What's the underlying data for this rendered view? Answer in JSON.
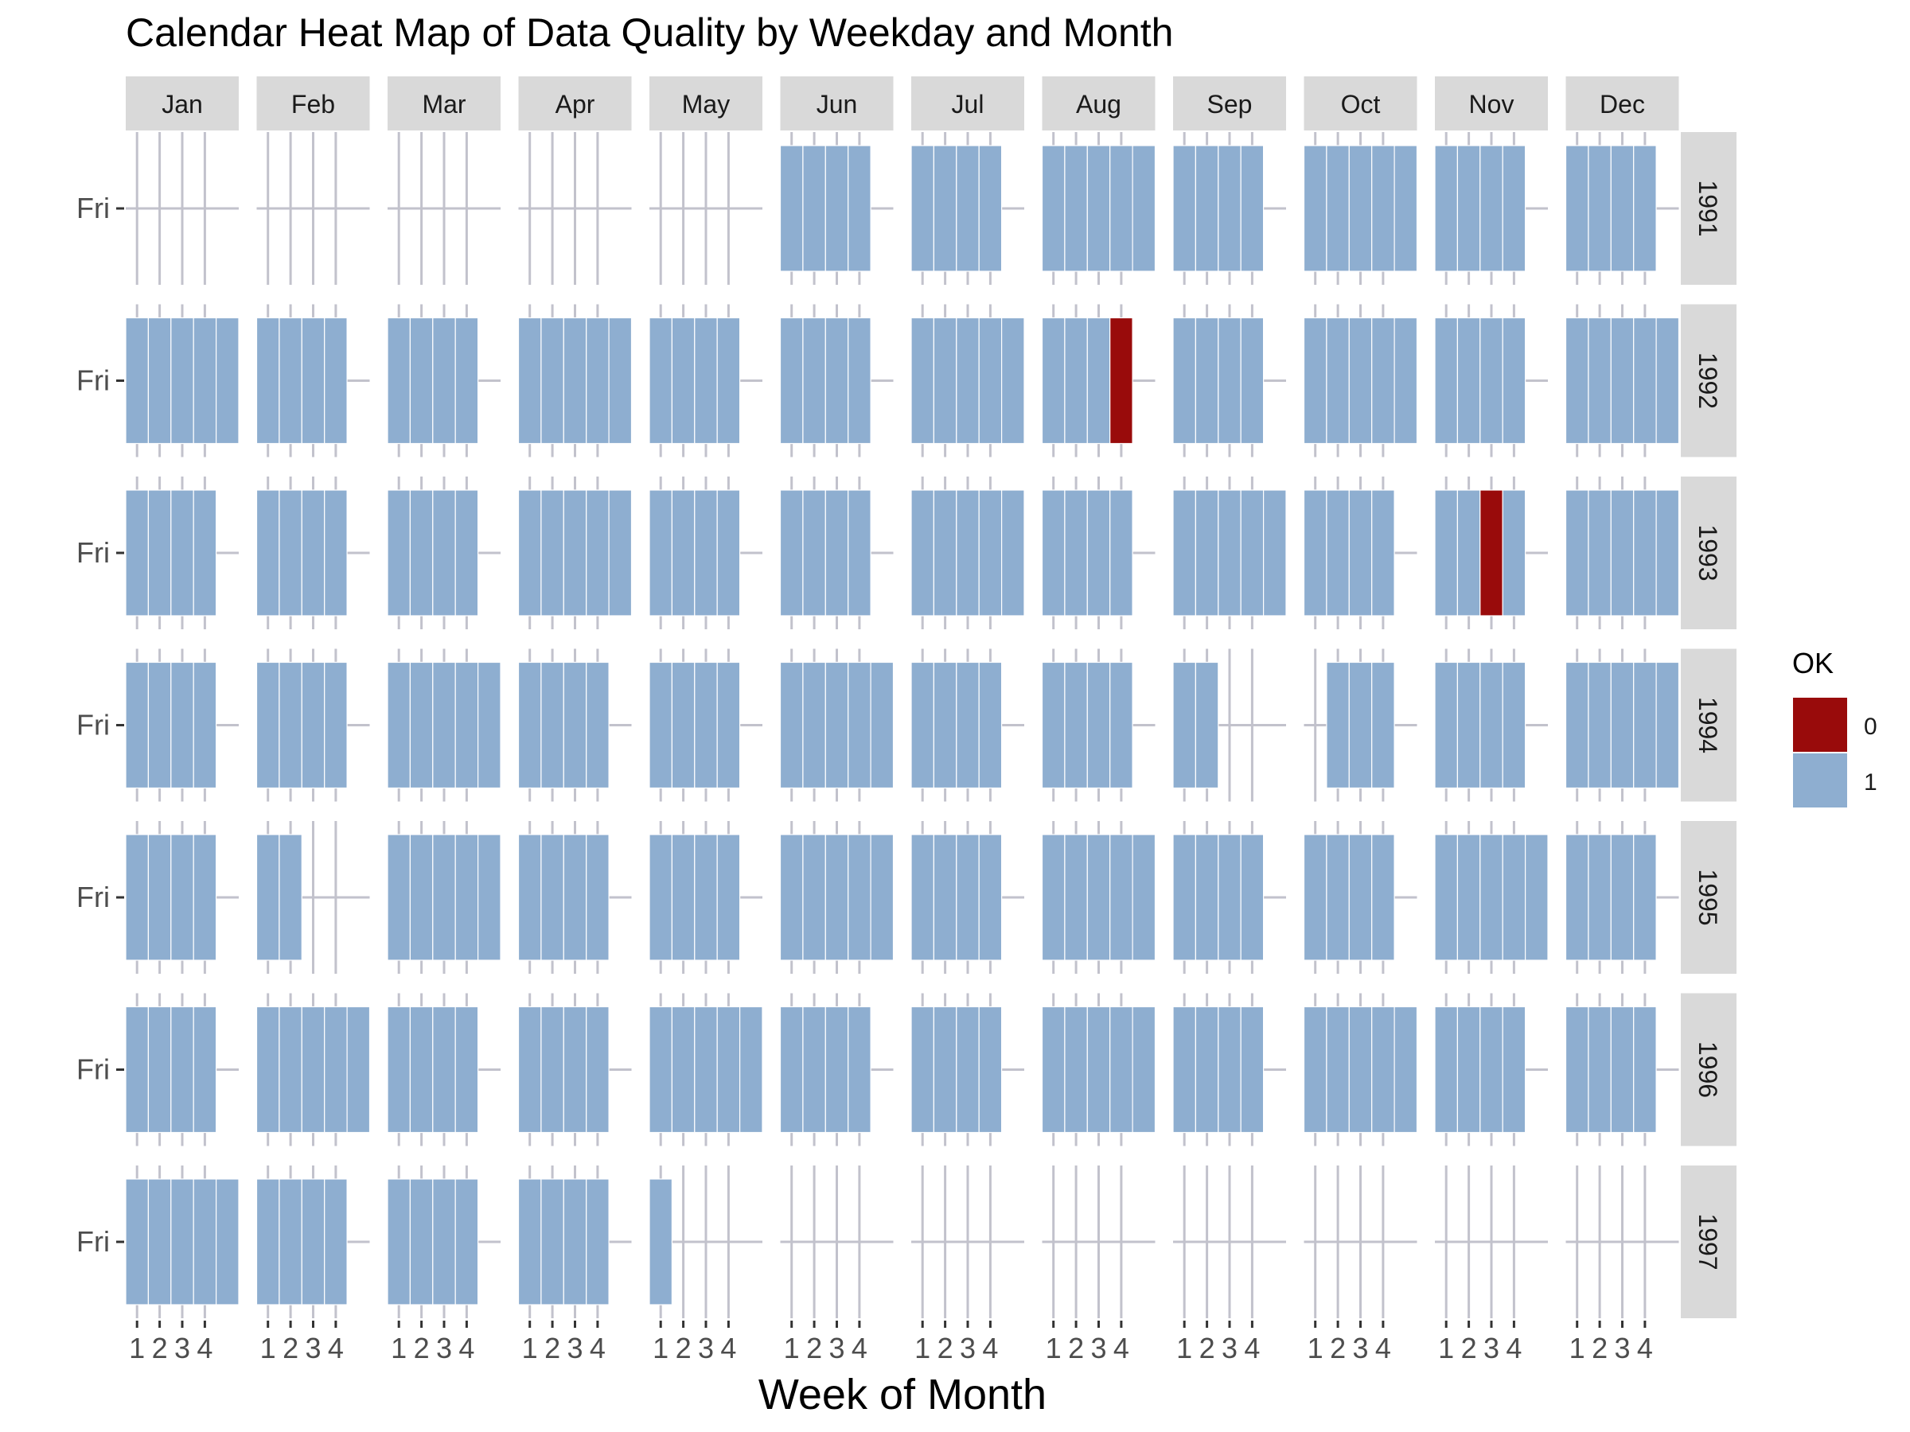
{
  "chart_data": {
    "type": "heatmap",
    "title": "Calendar Heat Map of Data Quality by Weekday and Month",
    "xlabel": "Week of Month",
    "ylabel": "",
    "months": [
      "Jan",
      "Feb",
      "Mar",
      "Apr",
      "May",
      "Jun",
      "Jul",
      "Aug",
      "Sep",
      "Oct",
      "Nov",
      "Dec"
    ],
    "years": [
      "1991",
      "1992",
      "1993",
      "1994",
      "1995",
      "1996",
      "1997"
    ],
    "x_ticks": [
      "1",
      "2",
      "3",
      "4"
    ],
    "y_tick": "Fri",
    "xlim": [
      0.5,
      5.5
    ],
    "legend": {
      "title": "OK",
      "position": "right",
      "items": [
        {
          "label": "0",
          "color": "#990b0b"
        },
        {
          "label": "1",
          "color": "#8eaed0"
        }
      ]
    },
    "grid": true,
    "cells": {
      "1991": [
        [],
        [],
        [],
        [],
        [],
        [
          1,
          1,
          1,
          1
        ],
        [
          1,
          1,
          1,
          1
        ],
        [
          1,
          1,
          1,
          1,
          1
        ],
        [
          1,
          1,
          1,
          1
        ],
        [
          1,
          1,
          1,
          1,
          1
        ],
        [
          1,
          1,
          1,
          1
        ],
        [
          1,
          1,
          1,
          1
        ]
      ],
      "1992": [
        [
          1,
          1,
          1,
          1,
          1
        ],
        [
          1,
          1,
          1,
          1
        ],
        [
          1,
          1,
          1,
          1
        ],
        [
          1,
          1,
          1,
          1,
          1
        ],
        [
          1,
          1,
          1,
          1
        ],
        [
          1,
          1,
          1,
          1
        ],
        [
          1,
          1,
          1,
          1,
          1
        ],
        [
          1,
          1,
          1,
          0
        ],
        [
          1,
          1,
          1,
          1
        ],
        [
          1,
          1,
          1,
          1,
          1
        ],
        [
          1,
          1,
          1,
          1
        ],
        [
          1,
          1,
          1,
          1,
          1
        ]
      ],
      "1993": [
        [
          1,
          1,
          1,
          1
        ],
        [
          1,
          1,
          1,
          1
        ],
        [
          1,
          1,
          1,
          1
        ],
        [
          1,
          1,
          1,
          1,
          1
        ],
        [
          1,
          1,
          1,
          1
        ],
        [
          1,
          1,
          1,
          1
        ],
        [
          1,
          1,
          1,
          1,
          1
        ],
        [
          1,
          1,
          1,
          1
        ],
        [
          1,
          1,
          1,
          1,
          1
        ],
        [
          1,
          1,
          1,
          1
        ],
        [
          1,
          1,
          0,
          1
        ],
        [
          1,
          1,
          1,
          1,
          1
        ]
      ],
      "1994": [
        [
          1,
          1,
          1,
          1
        ],
        [
          1,
          1,
          1,
          1
        ],
        [
          1,
          1,
          1,
          1,
          1
        ],
        [
          1,
          1,
          1,
          1
        ],
        [
          1,
          1,
          1,
          1
        ],
        [
          1,
          1,
          1,
          1,
          1
        ],
        [
          1,
          1,
          1,
          1
        ],
        [
          1,
          1,
          1,
          1
        ],
        [
          1,
          1
        ],
        [
          null,
          1,
          1,
          1
        ],
        [
          1,
          1,
          1,
          1
        ],
        [
          1,
          1,
          1,
          1,
          1
        ]
      ],
      "1995": [
        [
          1,
          1,
          1,
          1
        ],
        [
          1,
          1
        ],
        [
          1,
          1,
          1,
          1,
          1
        ],
        [
          1,
          1,
          1,
          1
        ],
        [
          1,
          1,
          1,
          1
        ],
        [
          1,
          1,
          1,
          1,
          1
        ],
        [
          1,
          1,
          1,
          1
        ],
        [
          1,
          1,
          1,
          1,
          1
        ],
        [
          1,
          1,
          1,
          1
        ],
        [
          1,
          1,
          1,
          1
        ],
        [
          1,
          1,
          1,
          1,
          1
        ],
        [
          1,
          1,
          1,
          1
        ]
      ],
      "1996": [
        [
          1,
          1,
          1,
          1
        ],
        [
          1,
          1,
          1,
          1,
          1
        ],
        [
          1,
          1,
          1,
          1
        ],
        [
          1,
          1,
          1,
          1
        ],
        [
          1,
          1,
          1,
          1,
          1
        ],
        [
          1,
          1,
          1,
          1
        ],
        [
          1,
          1,
          1,
          1
        ],
        [
          1,
          1,
          1,
          1,
          1
        ],
        [
          1,
          1,
          1,
          1
        ],
        [
          1,
          1,
          1,
          1,
          1
        ],
        [
          1,
          1,
          1,
          1
        ],
        [
          1,
          1,
          1,
          1
        ]
      ],
      "1997": [
        [
          1,
          1,
          1,
          1,
          1
        ],
        [
          1,
          1,
          1,
          1
        ],
        [
          1,
          1,
          1,
          1
        ],
        [
          1,
          1,
          1,
          1
        ],
        [
          1
        ],
        [],
        [],
        [],
        [],
        [],
        [],
        []
      ]
    }
  }
}
